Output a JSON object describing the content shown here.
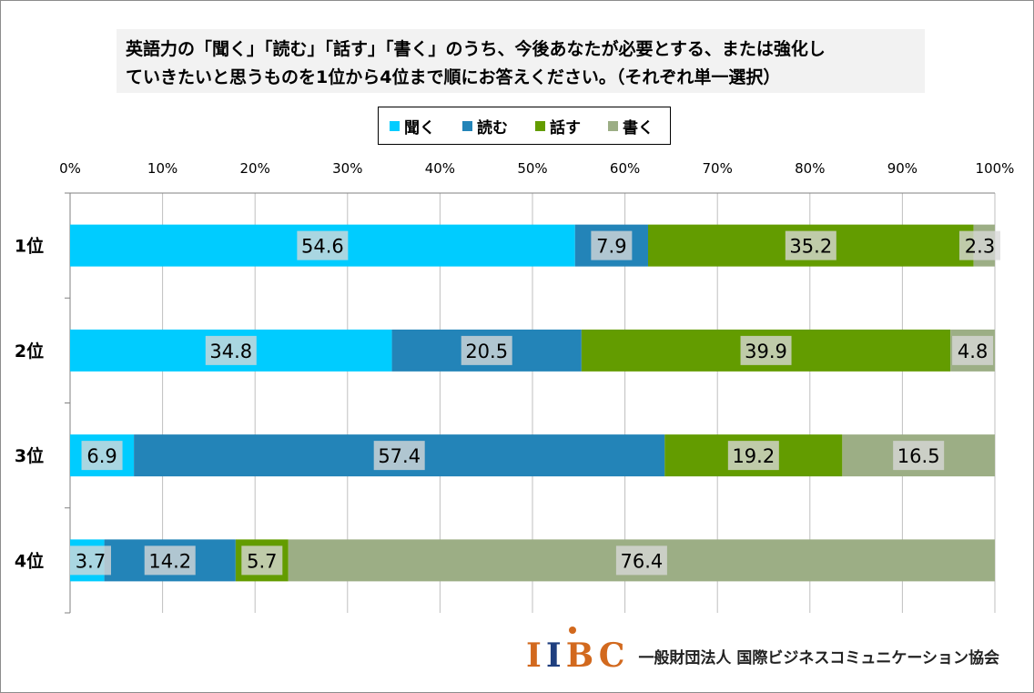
{
  "title": {
    "line1": "英語力の「聞く」「読む」「話す」「書く」のうち、今後あなたが必要とする、または強化し",
    "line2": "ていきたいと思うものを1位から4位まで順にお答えください。（それぞれ単一選択）"
  },
  "colors": {
    "聞く": "#00ccff",
    "読む": "#2384b8",
    "話す": "#639c00",
    "書く": "#9cae85",
    "label_bg": "#d9d9d9",
    "grid": "#bfbfbf"
  },
  "chart_data": {
    "type": "bar",
    "orientation": "horizontal",
    "stacked": "percent",
    "categories": [
      "1位",
      "2位",
      "3位",
      "4位"
    ],
    "series": [
      {
        "name": "聞く",
        "values": [
          54.6,
          34.8,
          6.9,
          3.7
        ]
      },
      {
        "name": "読む",
        "values": [
          7.9,
          20.5,
          57.4,
          14.2
        ]
      },
      {
        "name": "話す",
        "values": [
          35.2,
          39.9,
          19.2,
          5.7
        ]
      },
      {
        "name": "書く",
        "values": [
          2.3,
          4.8,
          16.5,
          76.4
        ]
      }
    ],
    "xticks": [
      "0%",
      "10%",
      "20%",
      "30%",
      "40%",
      "50%",
      "60%",
      "70%",
      "80%",
      "90%",
      "100%"
    ],
    "xlim": [
      0,
      100
    ],
    "grid": true,
    "legend": "top",
    "data_labels": true
  },
  "logo": {
    "mark": "IIBC",
    "mark_i1": "I",
    "mark_i2": "I",
    "mark_bc": "BC",
    "org": "一般財団法人 国際ビジネスコミュニケーション協会"
  }
}
